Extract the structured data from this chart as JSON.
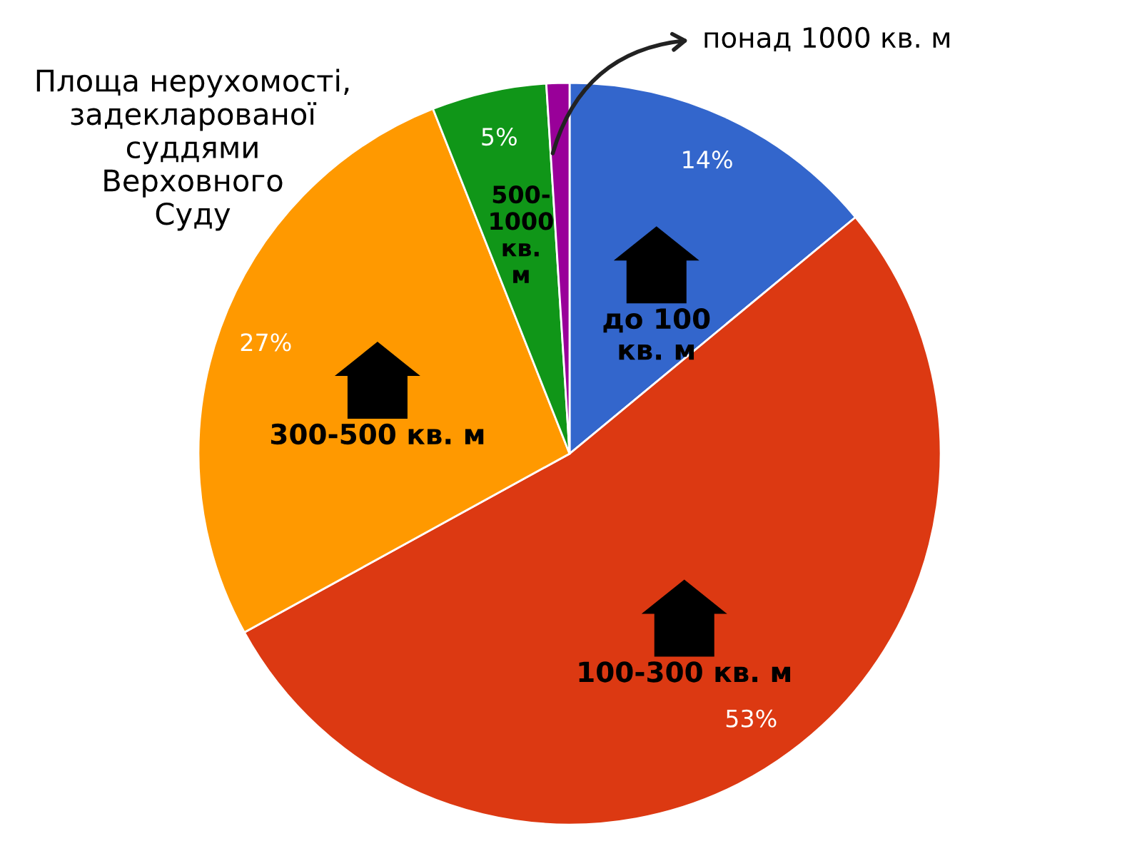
{
  "chart_data": {
    "type": "pie",
    "title": "Площа нерухомості,\nзадекларованої\nсуддями\nВерховного\nСуду",
    "categories": [
      "до 100\nкв. м",
      "100-300 кв. м",
      "300-500 кв. м",
      "500-\n1000\nкв.\nм",
      "понад 1000 кв. м"
    ],
    "values": [
      14,
      53,
      27,
      5,
      1
    ],
    "value_labels": [
      "14%",
      "53%",
      "27%",
      "5%",
      null
    ],
    "colors": [
      "#3366cc",
      "#dc3912",
      "#ff9900",
      "#109618",
      "#990099"
    ],
    "legend": false
  }
}
